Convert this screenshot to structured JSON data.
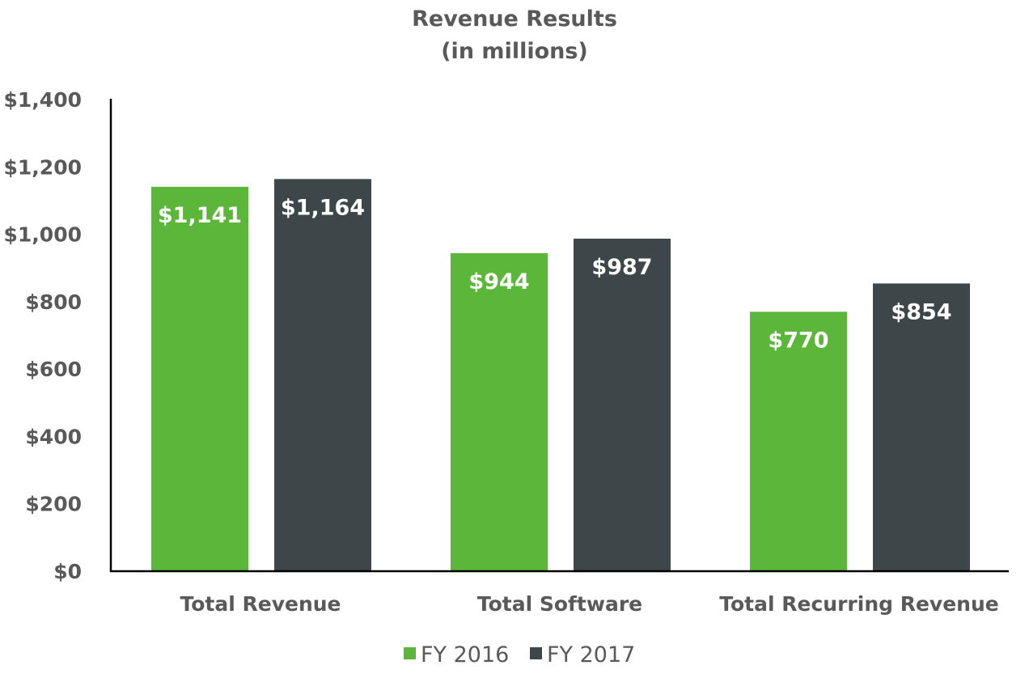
{
  "chart_data": {
    "type": "bar",
    "title": "Revenue Results",
    "subtitle": "(in millions)",
    "xlabel": "",
    "ylabel": "",
    "ylim": [
      0,
      1400
    ],
    "yticks": [
      0,
      200,
      400,
      600,
      800,
      1000,
      1200,
      1400
    ],
    "ytick_labels": [
      "$0",
      "$200",
      "$400",
      "$600",
      "$800",
      "$1,000",
      "$1,200",
      "$1,400"
    ],
    "grid": false,
    "legend_position": "bottom",
    "categories": [
      "Total Revenue",
      "Total Software",
      "Total Recurring Revenue"
    ],
    "series": [
      {
        "name": "FY 2016",
        "color": "#5cb63a",
        "values": [
          1141,
          944,
          770
        ],
        "labels": [
          "$1,141",
          "$944",
          "$770"
        ]
      },
      {
        "name": "FY 2017",
        "color": "#3d4648",
        "values": [
          1164,
          987,
          854
        ],
        "labels": [
          "$1,164",
          "$987",
          "$854"
        ]
      }
    ]
  }
}
